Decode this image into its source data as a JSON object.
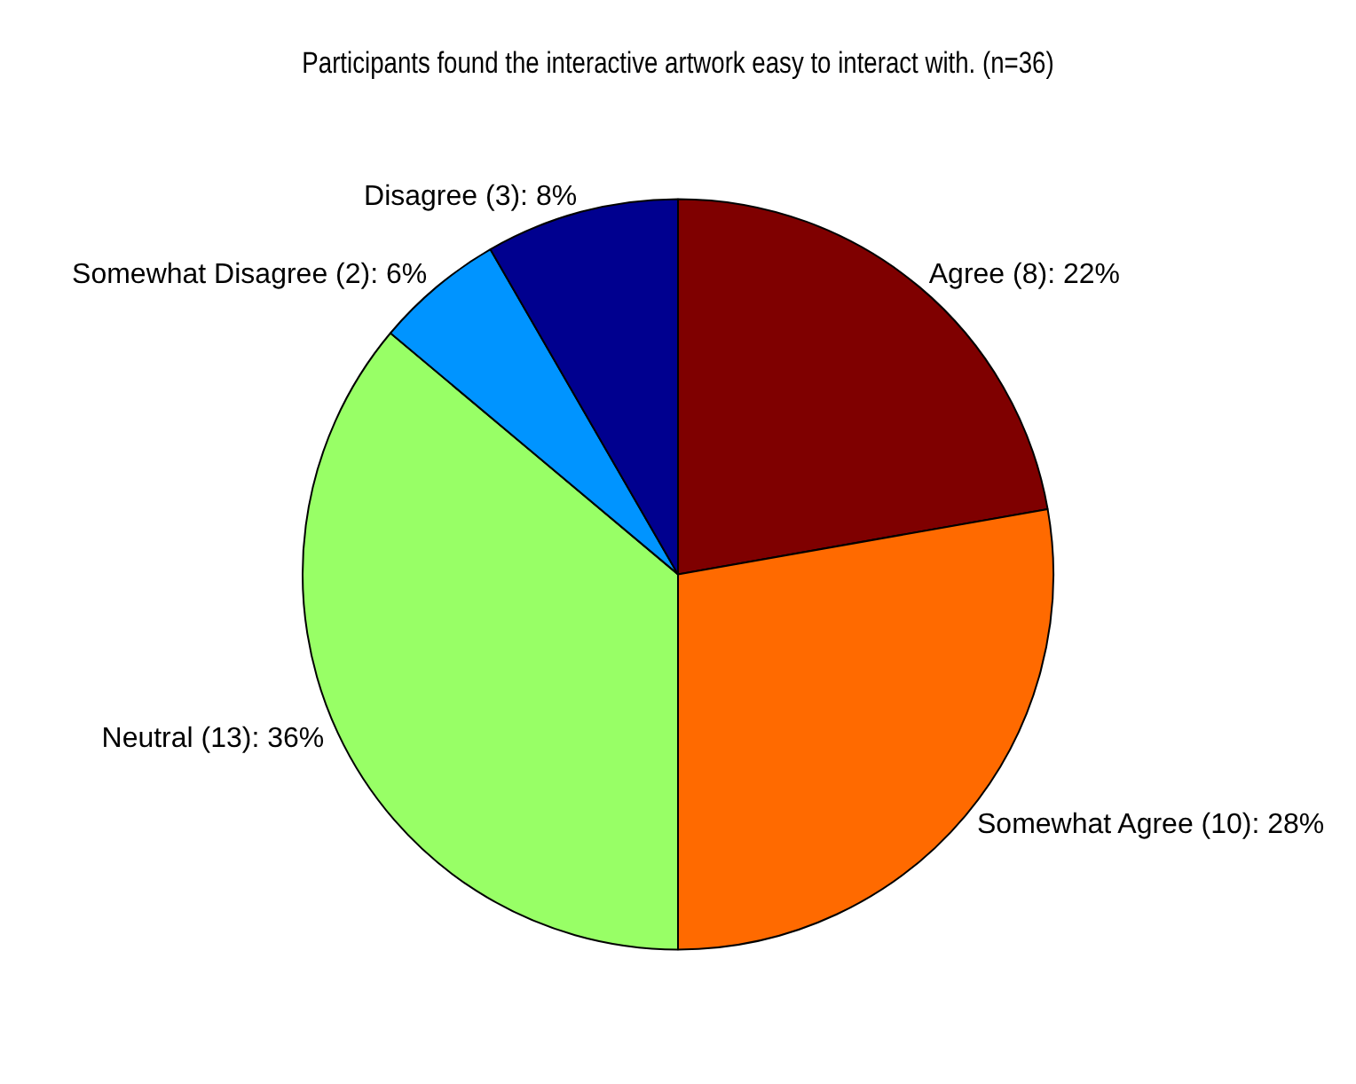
{
  "chart_data": {
    "type": "pie",
    "title": "Participants found the interactive artwork easy to interact with. (n=36)",
    "categories": [
      "Agree (8): 22%",
      "Somewhat Agree (10): 28%",
      "Neutral (13): 36%",
      "Somewhat Disagree (2): 6%",
      "Disagree (3): 8%"
    ],
    "values": [
      8,
      10,
      13,
      2,
      3
    ],
    "colors": [
      "#7f0000",
      "#ff6a00",
      "#98ff66",
      "#0094ff",
      "#00008f"
    ]
  }
}
